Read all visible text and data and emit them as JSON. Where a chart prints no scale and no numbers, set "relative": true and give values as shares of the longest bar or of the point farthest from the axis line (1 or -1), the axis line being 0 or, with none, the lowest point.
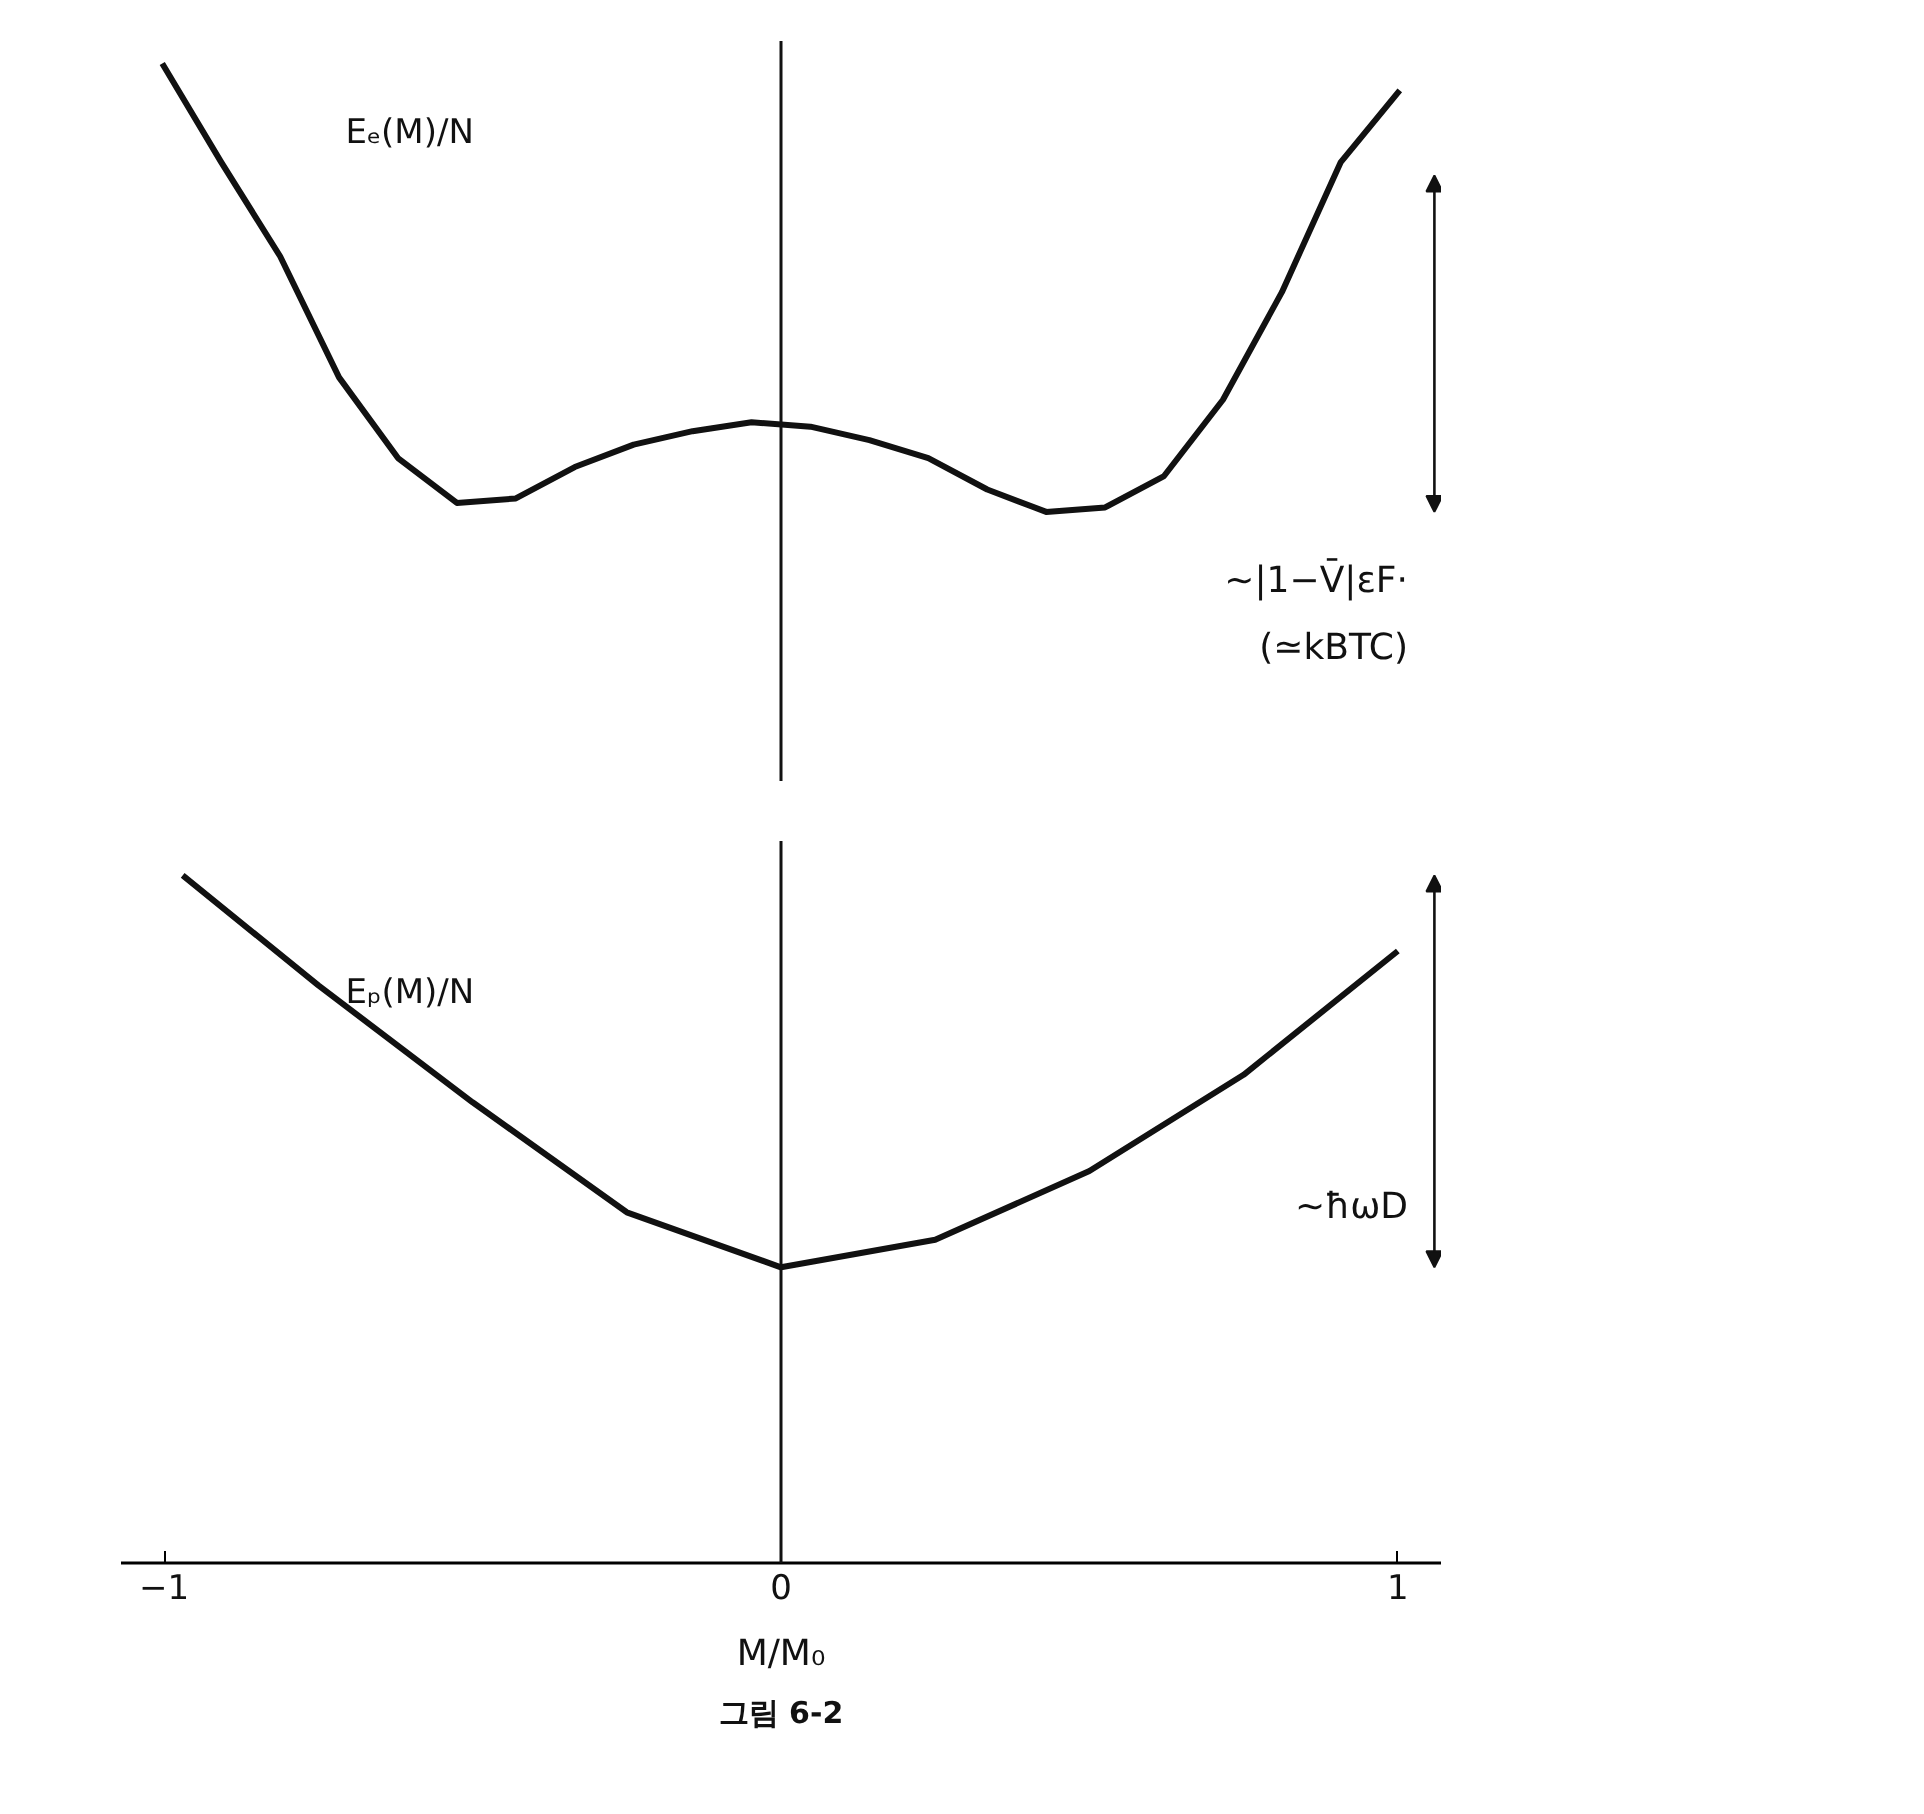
{
  "chart_data": [
    {
      "type": "line",
      "relative": true,
      "tick_labels": false,
      "categories": [
        null,
        null,
        null,
        null,
        null,
        null,
        null,
        null,
        null,
        null,
        null,
        null,
        null,
        null,
        null,
        null,
        null,
        null,
        null,
        null,
        null,
        null
      ],
      "series": [
        {
          "name": "Eₑ(M)/N",
          "color": "#111111",
          "values": [
            1.0,
            0.78,
            0.57,
            0.3,
            0.12,
            0.02,
            0.03,
            0.1,
            0.15,
            0.18,
            0.2,
            0.19,
            0.16,
            0.12,
            0.05,
            0.0,
            0.01,
            0.08,
            0.25,
            0.49,
            0.78,
            0.94
          ]
        }
      ],
      "annotations": [
        "~|1−V̄|εF·",
        "(≃kBTC)"
      ]
    },
    {
      "type": "line",
      "relative": true,
      "tick_labels": "x",
      "xlim": [
        -1.07,
        1.07
      ],
      "xticks": [
        -1,
        0,
        1
      ],
      "xlabel": "M/M₀",
      "x": [
        -0.97,
        -0.75,
        -0.5,
        -0.25,
        0,
        0.25,
        0.5,
        0.75,
        1.0
      ],
      "series": [
        {
          "name": "Eₚ(M)/N",
          "color": "#111111",
          "values": [
            1.0,
            0.84,
            0.67,
            0.51,
            0.43,
            0.47,
            0.57,
            0.71,
            0.89
          ]
        }
      ],
      "ref_lines": [
        {
          "axis": "x",
          "value": 0
        }
      ],
      "annotations": [
        "~ħωD",
        "그림 6-2"
      ]
    }
  ]
}
